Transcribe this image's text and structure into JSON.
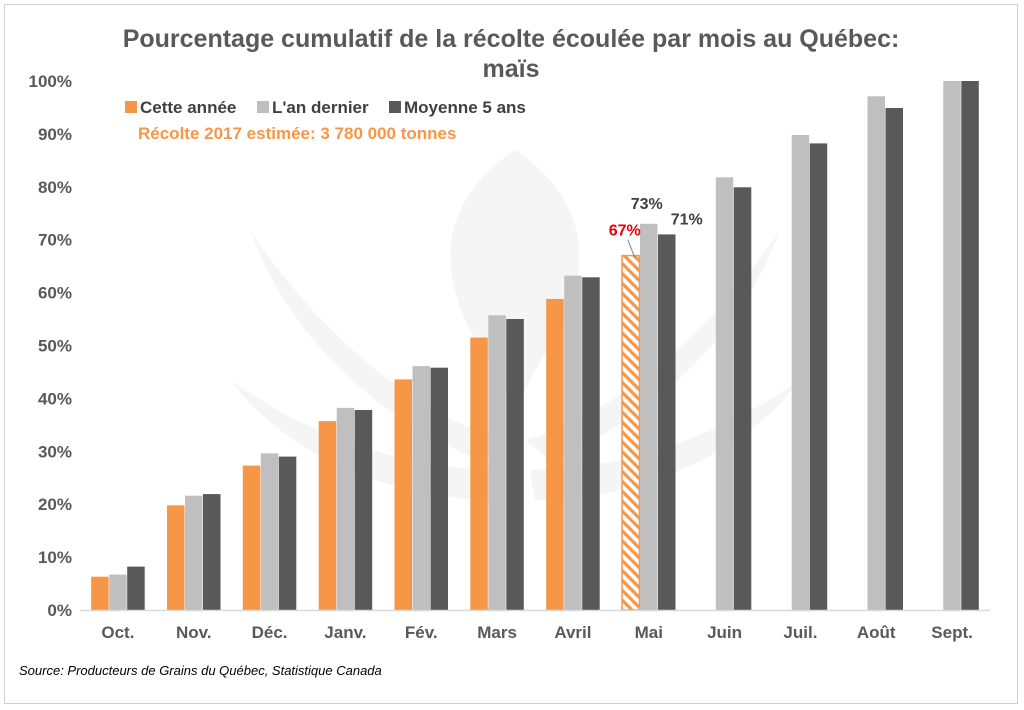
{
  "colors": {
    "this_year": "#F79646",
    "last_year": "#BFBFBF",
    "avg5": "#595959",
    "highlight": "#E8000B",
    "label_dark": "#404040",
    "axis": "#D9D9D9"
  },
  "footer": {
    "source": "Source: Producteurs de Grains du Québec, Statistique Canada"
  },
  "chart_data": {
    "type": "bar",
    "title": "Pourcentage cumulatif de la récolte écoulée par mois au Québec:",
    "subtitle": "maïs",
    "note": "Récolte 2017 estimée: 3 780 000 tonnes",
    "legend_position": "top-left",
    "grid": false,
    "ylim": [
      0,
      100
    ],
    "yticks": [
      "0%",
      "10%",
      "20%",
      "30%",
      "40%",
      "50%",
      "60%",
      "70%",
      "80%",
      "90%",
      "100%"
    ],
    "categories": [
      "Oct.",
      "Nov.",
      "Déc.",
      "Janv.",
      "Fév.",
      "Mars",
      "Avril",
      "Mai",
      "Juin",
      "Juil.",
      "Août",
      "Sept."
    ],
    "series": [
      {
        "name": "Cette année",
        "values": [
          6.3,
          19.8,
          27.3,
          35.7,
          43.6,
          51.5,
          58.8,
          67,
          null,
          null,
          null,
          null
        ],
        "estimated_index": 7
      },
      {
        "name": "L'an dernier",
        "values": [
          6.7,
          21.6,
          29.6,
          38.2,
          46.1,
          55.7,
          63.2,
          73,
          81.8,
          89.8,
          97.1,
          100
        ]
      },
      {
        "name": "Moyenne 5 ans",
        "values": [
          8.2,
          21.9,
          29.0,
          37.8,
          45.8,
          55.0,
          62.9,
          71,
          79.9,
          88.2,
          94.9,
          100
        ]
      }
    ],
    "data_labels": [
      {
        "series": 0,
        "category": 7,
        "text": "67%"
      },
      {
        "series": 1,
        "category": 7,
        "text": "73%"
      },
      {
        "series": 2,
        "category": 7,
        "text": "71%"
      }
    ]
  }
}
